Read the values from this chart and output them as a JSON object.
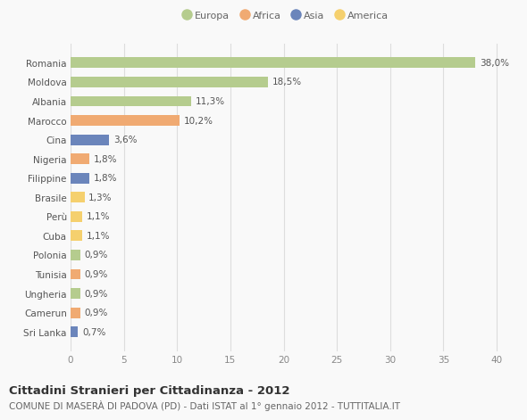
{
  "title": "Cittadini Stranieri per Cittadinanza - 2012",
  "subtitle": "COMUNE DI MASERÀ DI PADOVA (PD) - Dati ISTAT al 1° gennaio 2012 - TUTTITALIA.IT",
  "categories": [
    "Romania",
    "Moldova",
    "Albania",
    "Marocco",
    "Cina",
    "Nigeria",
    "Filippine",
    "Brasile",
    "Perù",
    "Cuba",
    "Polonia",
    "Tunisia",
    "Ungheria",
    "Camerun",
    "Sri Lanka"
  ],
  "values": [
    38.0,
    18.5,
    11.3,
    10.2,
    3.6,
    1.8,
    1.8,
    1.3,
    1.1,
    1.1,
    0.9,
    0.9,
    0.9,
    0.9,
    0.7
  ],
  "labels": [
    "38,0%",
    "18,5%",
    "11,3%",
    "10,2%",
    "3,6%",
    "1,8%",
    "1,8%",
    "1,3%",
    "1,1%",
    "1,1%",
    "0,9%",
    "0,9%",
    "0,9%",
    "0,9%",
    "0,7%"
  ],
  "colors": [
    "#b5cc8e",
    "#b5cc8e",
    "#b5cc8e",
    "#f0aa72",
    "#6b85bb",
    "#f0aa72",
    "#6b85bb",
    "#f5d06e",
    "#f5d06e",
    "#f5d06e",
    "#b5cc8e",
    "#f0aa72",
    "#b5cc8e",
    "#f0aa72",
    "#6b85bb"
  ],
  "legend": [
    {
      "label": "Europa",
      "color": "#b5cc8e"
    },
    {
      "label": "Africa",
      "color": "#f0aa72"
    },
    {
      "label": "Asia",
      "color": "#6b85bb"
    },
    {
      "label": "America",
      "color": "#f5d06e"
    }
  ],
  "xlim": [
    0,
    42
  ],
  "xticks": [
    0,
    5,
    10,
    15,
    20,
    25,
    30,
    35,
    40
  ],
  "background_color": "#f9f9f9",
  "grid_color": "#dddddd",
  "bar_height": 0.55,
  "title_fontsize": 9.5,
  "subtitle_fontsize": 7.5,
  "tick_fontsize": 7.5,
  "label_fontsize": 7.5
}
